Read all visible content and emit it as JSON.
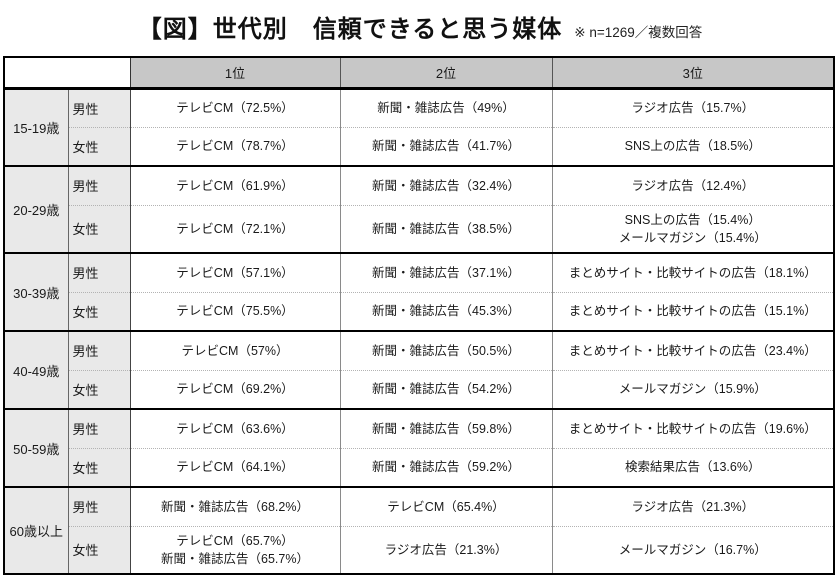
{
  "chart_data": {
    "type": "table",
    "title": "【図】世代別　信頼できると思う媒体",
    "note": "※ n=1269／複数回答",
    "headers": {
      "rank1": "1位",
      "rank2": "2位",
      "rank3": "3位"
    },
    "groups": [
      {
        "age": "15-19歳",
        "rows": [
          {
            "gender": "男性",
            "rank1": "テレビCM（72.5%）",
            "rank2": "新聞・雑誌広告（49%）",
            "rank3": "ラジオ広告（15.7%）"
          },
          {
            "gender": "女性",
            "rank1": "テレビCM（78.7%）",
            "rank2": "新聞・雑誌広告（41.7%）",
            "rank3": "SNS上の広告（18.5%）"
          }
        ]
      },
      {
        "age": "20-29歳",
        "rows": [
          {
            "gender": "男性",
            "rank1": "テレビCM（61.9%）",
            "rank2": "新聞・雑誌広告（32.4%）",
            "rank3": "ラジオ広告（12.4%）"
          },
          {
            "gender": "女性",
            "rank1": "テレビCM（72.1%）",
            "rank2": "新聞・雑誌広告（38.5%）",
            "rank3": "SNS上の広告（15.4%）\nメールマガジン（15.4%）"
          }
        ]
      },
      {
        "age": "30-39歳",
        "rows": [
          {
            "gender": "男性",
            "rank1": "テレビCM（57.1%）",
            "rank2": "新聞・雑誌広告（37.1%）",
            "rank3": "まとめサイト・比較サイトの広告（18.1%）"
          },
          {
            "gender": "女性",
            "rank1": "テレビCM（75.5%）",
            "rank2": "新聞・雑誌広告（45.3%）",
            "rank3": "まとめサイト・比較サイトの広告（15.1%）"
          }
        ]
      },
      {
        "age": "40-49歳",
        "rows": [
          {
            "gender": "男性",
            "rank1": "テレビCM（57%）",
            "rank2": "新聞・雑誌広告（50.5%）",
            "rank3": "まとめサイト・比較サイトの広告（23.4%）"
          },
          {
            "gender": "女性",
            "rank1": "テレビCM（69.2%）",
            "rank2": "新聞・雑誌広告（54.2%）",
            "rank3": "メールマガジン（15.9%）"
          }
        ]
      },
      {
        "age": "50-59歳",
        "rows": [
          {
            "gender": "男性",
            "rank1": "テレビCM（63.6%）",
            "rank2": "新聞・雑誌広告（59.8%）",
            "rank3": "まとめサイト・比較サイトの広告（19.6%）"
          },
          {
            "gender": "女性",
            "rank1": "テレビCM（64.1%）",
            "rank2": "新聞・雑誌広告（59.2%）",
            "rank3": "検索結果広告（13.6%）"
          }
        ]
      },
      {
        "age": "60歳以上",
        "rows": [
          {
            "gender": "男性",
            "rank1": "新聞・雑誌広告（68.2%）",
            "rank2": "テレビCM（65.4%）",
            "rank3": "ラジオ広告（21.3%）"
          },
          {
            "gender": "女性",
            "rank1": "テレビCM（65.7%）\n新聞・雑誌広告（65.7%）",
            "rank2": "ラジオ広告（21.3%）",
            "rank3": "メールマガジン（16.7%）"
          }
        ]
      }
    ],
    "colors": {
      "header_bg": "#c7c7c7",
      "label_bg": "#e9e9e9",
      "border": "#000000",
      "inner_line": "#8a8a8a"
    }
  }
}
